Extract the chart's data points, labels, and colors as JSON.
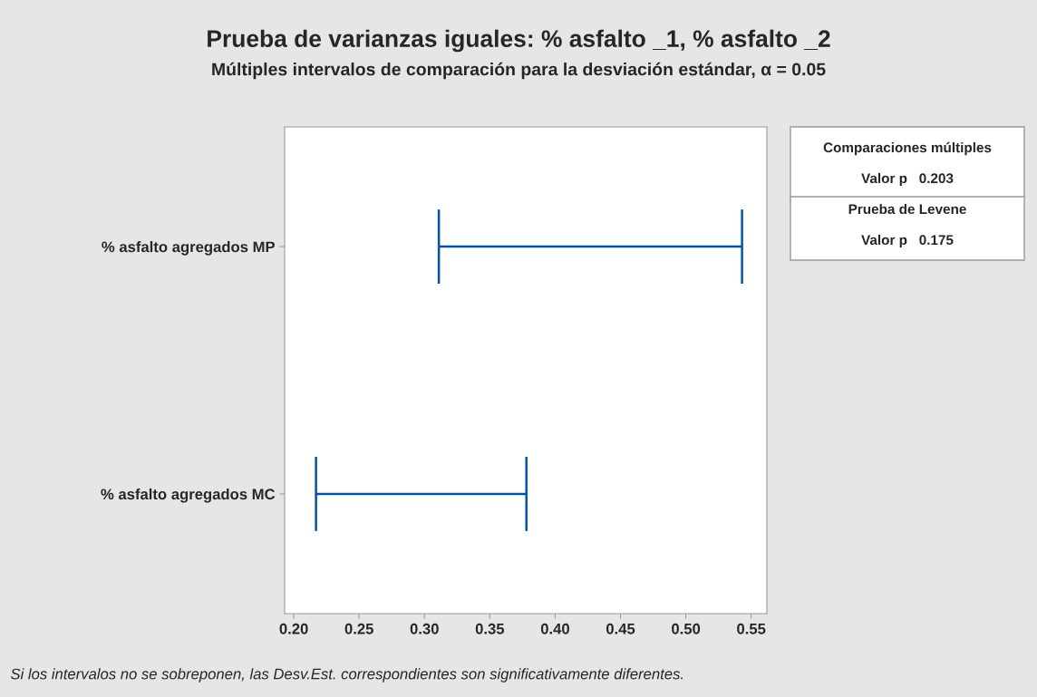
{
  "chart_data": {
    "type": "bar",
    "orientation": "horizontal",
    "title": "Prueba de varianzas iguales: % asfalto _1, % asfalto _2",
    "subtitle": "Múltiples intervalos de comparación para la desviación estándar, α = 0.05",
    "categories": [
      "% asfalto agregados MP",
      "% asfalto agregados MC"
    ],
    "base": [
      0.311,
      0.217
    ],
    "values": [
      0.232,
      0.161
    ],
    "color": "#0054a6",
    "xlim": [
      0.193,
      0.562
    ],
    "xticks": [
      {
        "value": 0.2,
        "label": "0.20"
      },
      0.25,
      {
        "value": 0.3,
        "label": "0.30"
      },
      0.35,
      {
        "value": 0.4,
        "label": "0.40"
      },
      0.45,
      {
        "value": 0.5,
        "label": "0.50"
      },
      0.55
    ],
    "grid": false,
    "legend": false,
    "annotations": [
      "Comparaciones múltiples",
      "Valor p   0.203",
      "Prueba de Levene",
      "Valor p   0.175",
      "Si los intervalos no se sobreponen, las Desv.Est. correspondientes son significativamente diferentes."
    ]
  }
}
